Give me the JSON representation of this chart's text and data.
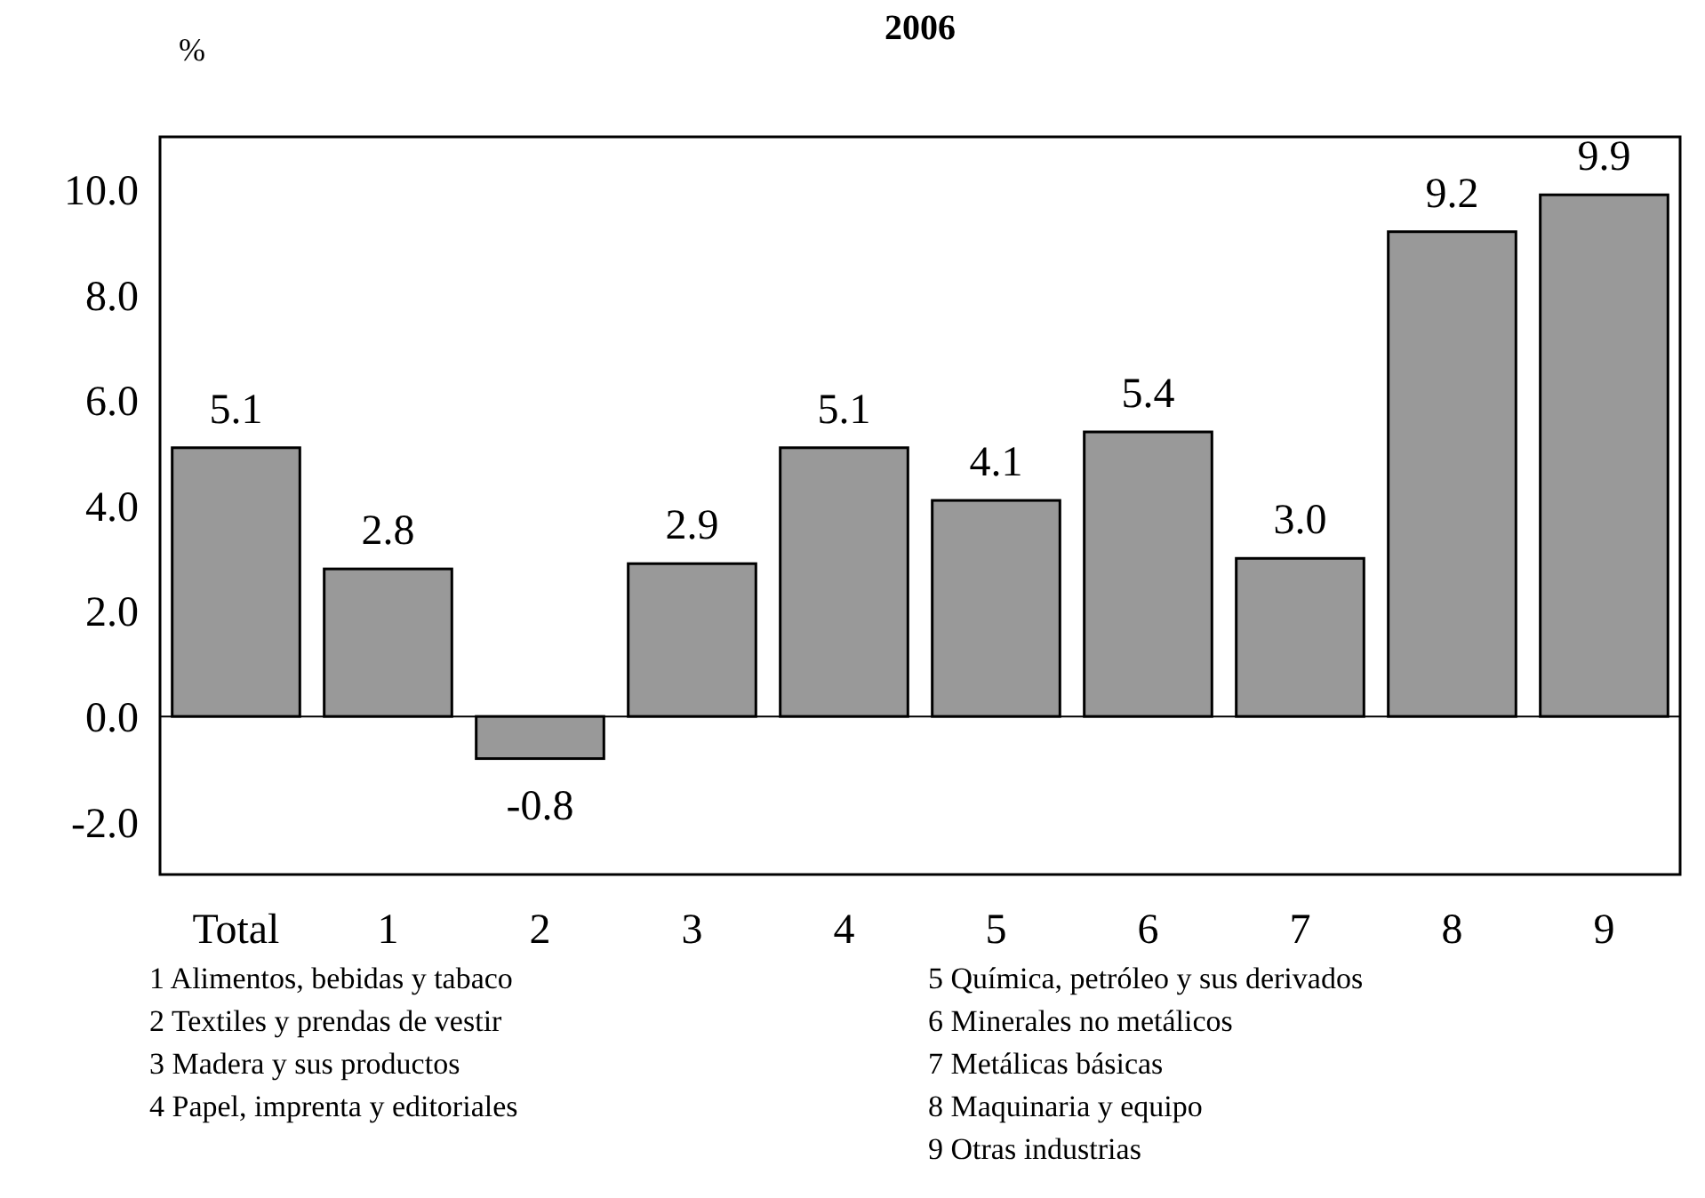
{
  "chart_data": {
    "type": "bar",
    "title": "2006",
    "ylabel": "%",
    "categories": [
      "Total",
      "1",
      "2",
      "3",
      "4",
      "5",
      "6",
      "7",
      "8",
      "9"
    ],
    "values": [
      5.1,
      2.8,
      -0.8,
      2.9,
      5.1,
      4.1,
      5.4,
      3.0,
      9.2,
      9.9
    ],
    "value_labels": [
      "5.1",
      "2.8",
      "-0.8",
      "2.9",
      "5.1",
      "4.1",
      "5.4",
      "3.0",
      "9.2",
      "9.9"
    ],
    "color": "#999999",
    "ylim": [
      -3,
      11
    ],
    "yticks": [
      {
        "value": -2,
        "label": "-2.0"
      },
      {
        "value": 0,
        "label": "0.0"
      },
      {
        "value": 2,
        "label": "2.0"
      },
      {
        "value": 4,
        "label": "4.0"
      },
      {
        "value": 6,
        "label": "6.0"
      },
      {
        "value": 8,
        "label": "8.0"
      },
      {
        "value": 10,
        "label": "10.0"
      }
    ],
    "ref_lines": [
      {
        "axis": "y",
        "value": 0
      }
    ],
    "annotations": [
      "1 Alimentos, bebidas y tabaco",
      "2 Textiles y prendas de vestir",
      "3 Madera y sus productos",
      "4 Papel, imprenta y editoriales",
      "5 Química, petróleo y sus derivados",
      "6 Minerales no metálicos",
      "7 Metálicas básicas",
      "8 Maquinaria y equipo",
      "9 Otras industrias"
    ]
  }
}
